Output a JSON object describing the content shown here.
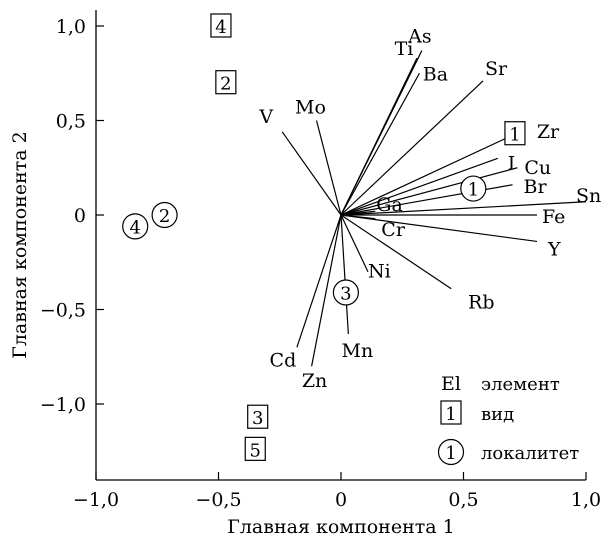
{
  "chart_data": {
    "type": "biplot",
    "xlabel": "Главная компонента 1",
    "ylabel": "Главная компонента 2",
    "xlim": [
      -1.0,
      1.0
    ],
    "ylim": [
      -1.4,
      1.1
    ],
    "xticks": [
      {
        "v": -1.0,
        "label": "−1,0"
      },
      {
        "v": -0.5,
        "label": "−0,5"
      },
      {
        "v": 0.0,
        "label": "0"
      },
      {
        "v": 0.5,
        "label": "0,5"
      },
      {
        "v": 1.0,
        "label": "1,0"
      }
    ],
    "yticks": [
      {
        "v": 1.0,
        "label": "1,0"
      },
      {
        "v": 0.5,
        "label": "0,5"
      },
      {
        "v": 0.0,
        "label": "0"
      },
      {
        "v": -0.5,
        "label": "−0,5"
      },
      {
        "v": -1.0,
        "label": "−1,0"
      }
    ],
    "vectors": [
      {
        "name": "As",
        "x": 0.33,
        "y": 0.87
      },
      {
        "name": "Ti",
        "x": 0.31,
        "y": 0.83
      },
      {
        "name": "Ba",
        "x": 0.32,
        "y": 0.75
      },
      {
        "name": "Sr",
        "x": 0.58,
        "y": 0.71
      },
      {
        "name": "Mo",
        "x": -0.1,
        "y": 0.5
      },
      {
        "name": "V",
        "x": -0.24,
        "y": 0.44
      },
      {
        "name": "Zr",
        "x": 0.73,
        "y": 0.44
      },
      {
        "name": "I",
        "x": 0.64,
        "y": 0.3
      },
      {
        "name": "Cu",
        "x": 0.72,
        "y": 0.25
      },
      {
        "name": "Br",
        "x": 0.7,
        "y": 0.16
      },
      {
        "name": "Sn",
        "x": 1.0,
        "y": 0.07
      },
      {
        "name": "Fe",
        "x": 0.8,
        "y": 0.0
      },
      {
        "name": "Ga",
        "x": 0.14,
        "y": 0.02
      },
      {
        "name": "Cr",
        "x": 0.14,
        "y": -0.02
      },
      {
        "name": "Y",
        "x": 0.8,
        "y": -0.14
      },
      {
        "name": "Ni",
        "x": 0.11,
        "y": -0.3
      },
      {
        "name": "Rb",
        "x": 0.45,
        "y": -0.39
      },
      {
        "name": "Mn",
        "x": 0.03,
        "y": -0.63
      },
      {
        "name": "Zn",
        "x": -0.12,
        "y": -0.8
      },
      {
        "name": "Cd",
        "x": -0.18,
        "y": -0.7
      }
    ],
    "species": [
      {
        "label": "4",
        "x": -0.49,
        "y": 1.0
      },
      {
        "label": "2",
        "x": -0.47,
        "y": 0.7
      },
      {
        "label": "1",
        "x": 0.71,
        "y": 0.43
      },
      {
        "label": "3",
        "x": -0.34,
        "y": -1.07
      },
      {
        "label": "5",
        "x": -0.35,
        "y": -1.24
      }
    ],
    "localities": [
      {
        "label": "2",
        "x": -0.72,
        "y": 0.0
      },
      {
        "label": "4",
        "x": -0.84,
        "y": -0.06
      },
      {
        "label": "1",
        "x": 0.54,
        "y": 0.14
      },
      {
        "label": "3",
        "x": 0.02,
        "y": -0.41
      }
    ],
    "legend": {
      "position": "bottom-right",
      "items": [
        {
          "symbol": "text",
          "symbol_text": "El",
          "label": "элемент"
        },
        {
          "symbol": "square",
          "symbol_text": "1",
          "label": "вид"
        },
        {
          "symbol": "circle",
          "symbol_text": "1",
          "label": "локалитет"
        }
      ]
    }
  }
}
